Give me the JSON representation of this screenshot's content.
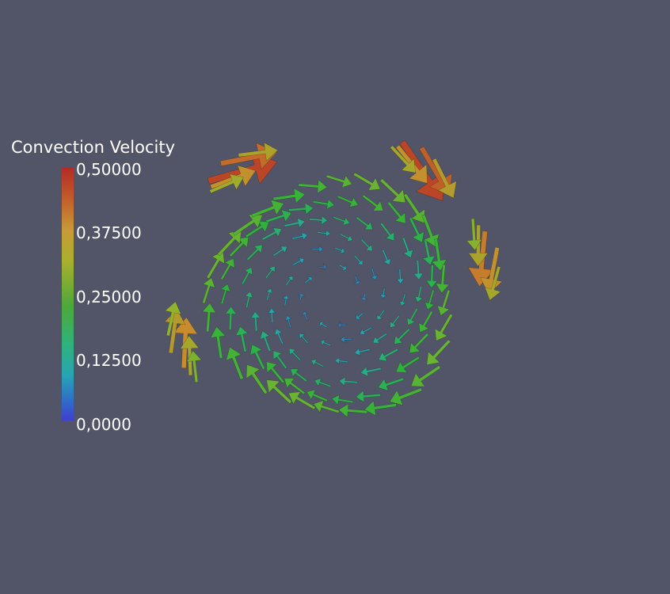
{
  "legend": {
    "title": "Convection Velocity",
    "ticks": [
      "0,50000",
      "0,37500",
      "0,25000",
      "0,12500",
      "0,0000"
    ],
    "range": [
      0,
      0.5
    ]
  },
  "colors": {
    "background": "#525468",
    "low": "#3f3fd0",
    "mid_low": "#27a5b3",
    "mid": "#2fb23a",
    "mid_high": "#a9b02c",
    "high": "#b52a25"
  }
}
